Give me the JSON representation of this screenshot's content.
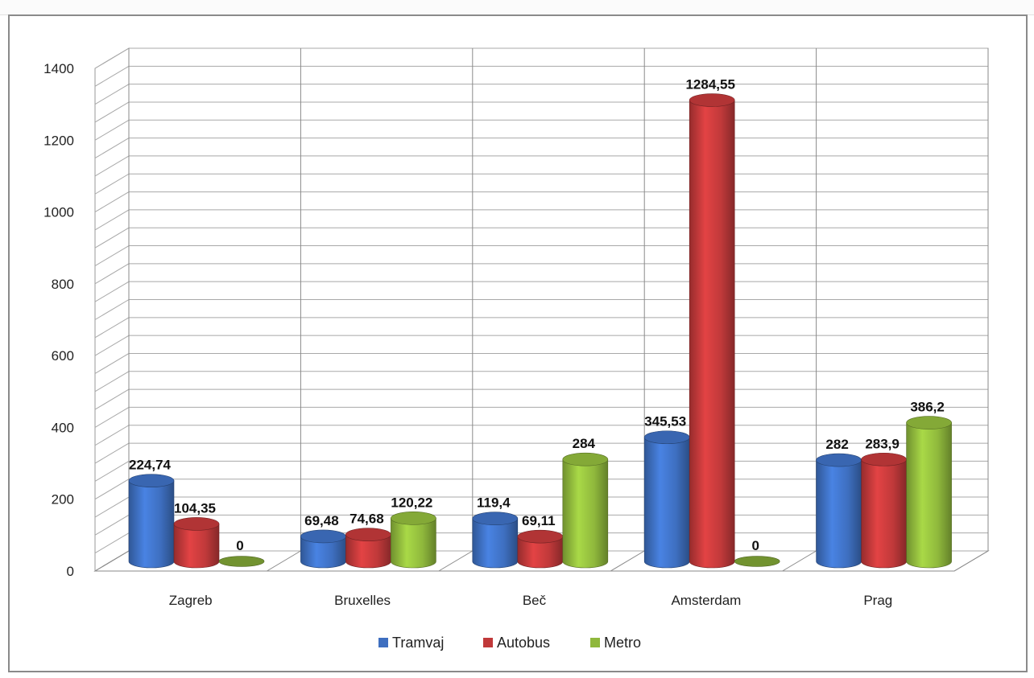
{
  "chart_data": {
    "type": "bar",
    "style": "3d-cylinder",
    "categories": [
      "Zagreb",
      "Bruxelles",
      "Beč",
      "Amsterdam",
      "Prag"
    ],
    "series": [
      {
        "name": "Tramvaj",
        "color": "#3e6fc0",
        "values": [
          224.74,
          69.48,
          119.4,
          345.53,
          282
        ],
        "labels": [
          "224,74",
          "69,48",
          "119,4",
          "345,53",
          "282"
        ]
      },
      {
        "name": "Autobus",
        "color": "#c0393a",
        "values": [
          104.35,
          74.68,
          69.11,
          1284.55,
          283.9
        ],
        "labels": [
          "104,35",
          "74,68",
          "69,11",
          "1284,55",
          "283,9"
        ]
      },
      {
        "name": "Metro",
        "color": "#8fb83c",
        "values": [
          0,
          120.22,
          284,
          0,
          386.2
        ],
        "labels": [
          "0",
          "120,22",
          "284",
          "0",
          "386,2"
        ]
      }
    ],
    "ylim": [
      0,
      1400
    ],
    "yticks": [
      "0",
      "200",
      "400",
      "600",
      "800",
      "1000",
      "1200",
      "1400"
    ],
    "grid": true,
    "legend_position": "bottom"
  }
}
